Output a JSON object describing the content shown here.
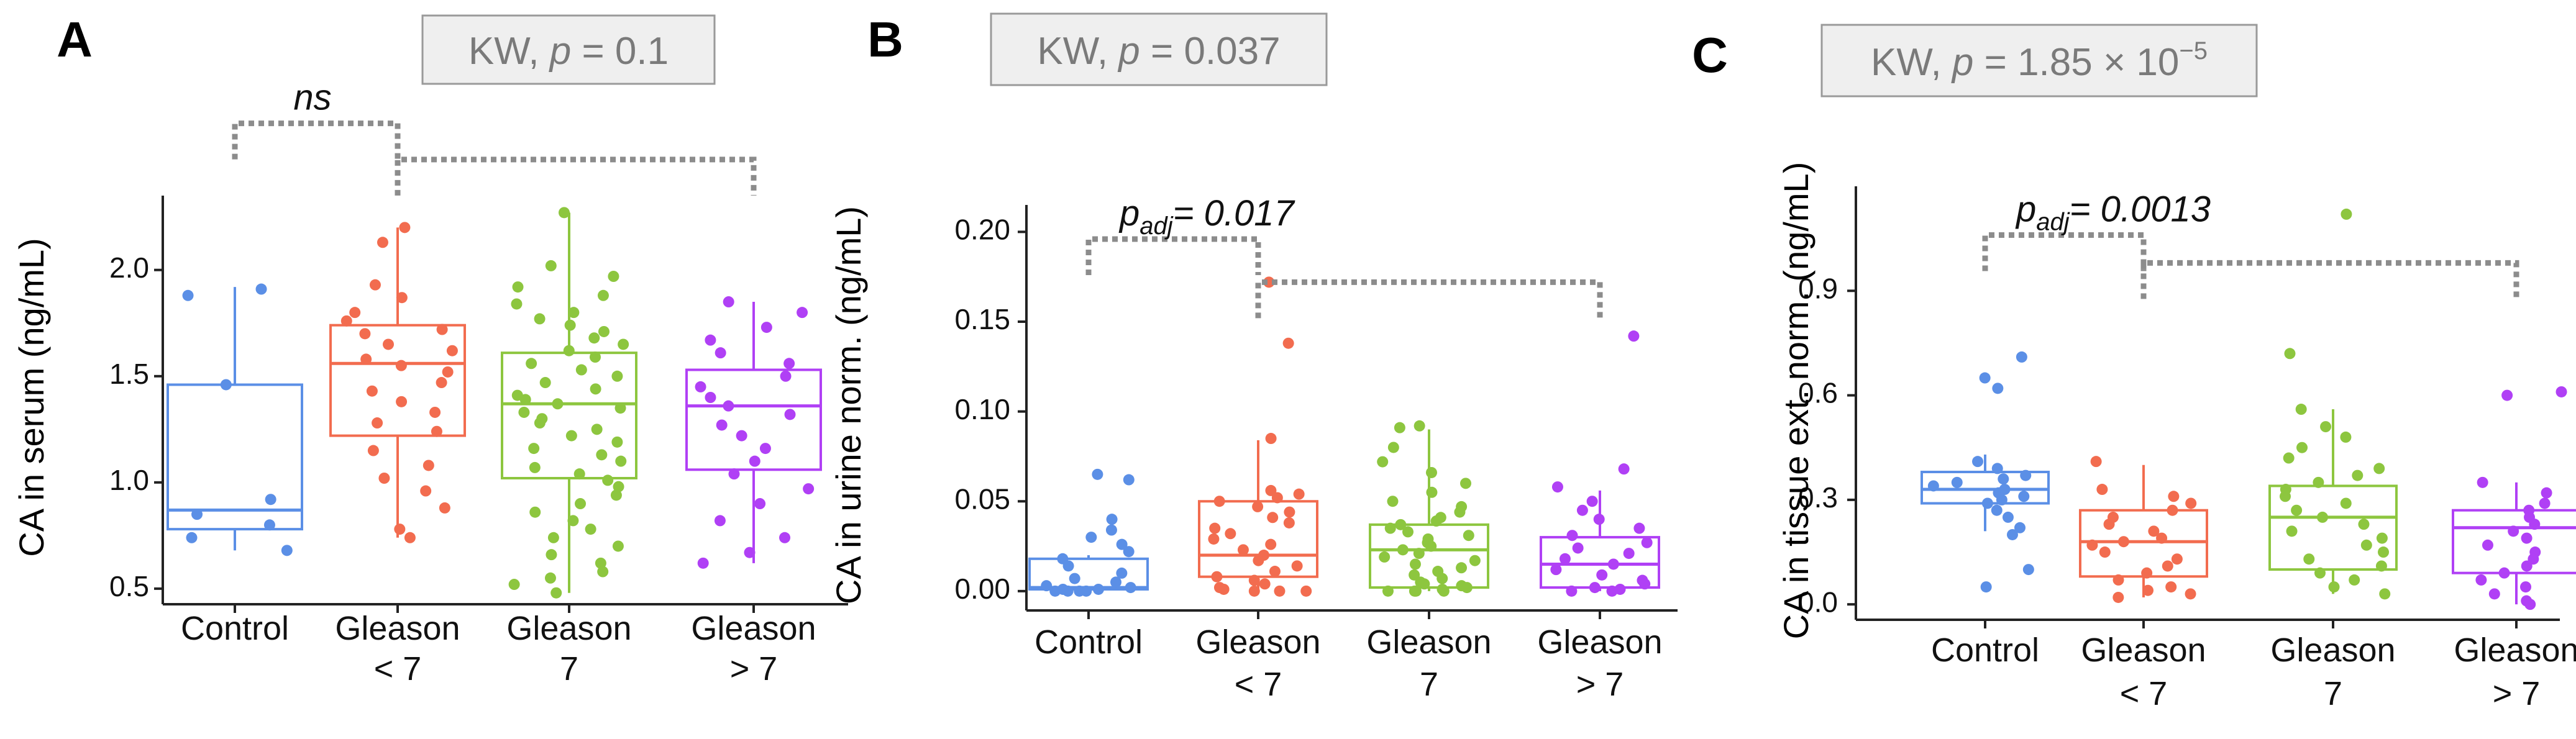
{
  "colors": {
    "Control": "#5b8fe6",
    "Gleason < 7": "#f26c4f",
    "Gleason 7": "#8dc63f",
    "Gleason > 7": "#b040f5",
    "bracket": "#8c8c8c",
    "kwbox_fill": "#efefef",
    "kwbox_stroke": "#9a9a9a"
  },
  "categories_lines": [
    [
      "Control"
    ],
    [
      "Gleason",
      "< 7"
    ],
    [
      "Gleason",
      "7"
    ],
    [
      "Gleason",
      "> 7"
    ]
  ],
  "chart_data": [
    {
      "panel": "A",
      "type": "box",
      "ylabel": "CA in serum (ng/mL)",
      "yticks": [
        "0.5",
        "1.0",
        "1.5",
        "2.0"
      ],
      "ylim": [
        0.45,
        2.35
      ],
      "kw_label": "KW,",
      "kw_p": "p",
      "kw_value": "= 0.1",
      "kw_value_sup": "",
      "brackets": [
        {
          "from": 0,
          "to": 1,
          "level": 2.69,
          "label": "ns",
          "label_sub": "",
          "label_tail": ""
        },
        {
          "from": 1,
          "to": 3,
          "level": 2.52,
          "label": "",
          "label_sub": "",
          "label_tail": ""
        }
      ],
      "series": [
        {
          "name": "Control",
          "q1": 0.78,
          "median": 0.87,
          "q3": 1.46,
          "whisker_low": 0.68,
          "whisker_high": 1.92,
          "points": [
            1.91,
            1.88,
            1.46,
            0.92,
            0.85,
            0.8,
            0.74,
            0.68
          ]
        },
        {
          "name": "Gleason < 7",
          "q1": 1.22,
          "median": 1.56,
          "q3": 1.74,
          "whisker_low": 0.74,
          "whisker_high": 2.2,
          "points": [
            2.2,
            2.13,
            1.93,
            1.87,
            1.8,
            1.76,
            1.72,
            1.7,
            1.65,
            1.62,
            1.58,
            1.55,
            1.52,
            1.47,
            1.43,
            1.38,
            1.33,
            1.28,
            1.24,
            1.15,
            1.08,
            1.02,
            0.96,
            0.88,
            0.78,
            0.74
          ]
        },
        {
          "name": "Gleason 7",
          "q1": 1.02,
          "median": 1.37,
          "q3": 1.61,
          "whisker_low": 0.48,
          "whisker_high": 2.27,
          "points": [
            2.27,
            2.02,
            1.97,
            1.92,
            1.88,
            1.84,
            1.8,
            1.77,
            1.74,
            1.71,
            1.68,
            1.65,
            1.62,
            1.59,
            1.56,
            1.53,
            1.5,
            1.47,
            1.44,
            1.41,
            1.39,
            1.37,
            1.35,
            1.33,
            1.3,
            1.28,
            1.25,
            1.22,
            1.19,
            1.16,
            1.13,
            1.1,
            1.07,
            1.04,
            1.01,
            0.98,
            0.94,
            0.9,
            0.86,
            0.82,
            0.78,
            0.74,
            0.7,
            0.66,
            0.62,
            0.58,
            0.55,
            0.52,
            0.48
          ]
        },
        {
          "name": "Gleason > 7",
          "q1": 1.06,
          "median": 1.36,
          "q3": 1.53,
          "whisker_low": 0.62,
          "whisker_high": 1.85,
          "points": [
            1.85,
            1.8,
            1.73,
            1.67,
            1.61,
            1.56,
            1.5,
            1.45,
            1.4,
            1.36,
            1.32,
            1.27,
            1.22,
            1.16,
            1.1,
            1.04,
            0.97,
            0.9,
            0.82,
            0.74,
            0.67,
            0.62
          ]
        }
      ]
    },
    {
      "panel": "B",
      "type": "box",
      "ylabel": "CA in urine norm. (ng/mL)",
      "yticks": [
        "0.00",
        "0.05",
        "0.10",
        "0.15",
        "0.20"
      ],
      "ylim": [
        -0.008,
        0.215
      ],
      "kw_label": "KW,",
      "kw_p": "p",
      "kw_value": "= 0.037",
      "kw_value_sup": "",
      "brackets": [
        {
          "from": 0,
          "to": 1,
          "level": 0.196,
          "label": "p",
          "label_sub": "adj",
          "label_tail": "= 0.017"
        },
        {
          "from": 1,
          "to": 3,
          "level": 0.172,
          "label": "",
          "label_sub": "",
          "label_tail": ""
        }
      ],
      "series": [
        {
          "name": "Control",
          "q1": 0.001,
          "median": 0.002,
          "q3": 0.018,
          "whisker_low": 0.0,
          "whisker_high": 0.02,
          "points": [
            0.065,
            0.062,
            0.04,
            0.034,
            0.03,
            0.026,
            0.022,
            0.018,
            0.014,
            0.01,
            0.007,
            0.005,
            0.003,
            0.002,
            0.001,
            0.001,
            0.0,
            0.0,
            0.0,
            0.0
          ]
        },
        {
          "name": "Gleason < 7",
          "q1": 0.008,
          "median": 0.02,
          "q3": 0.05,
          "whisker_low": 0.0,
          "whisker_high": 0.084,
          "points": [
            0.172,
            0.138,
            0.085,
            0.056,
            0.054,
            0.052,
            0.05,
            0.047,
            0.044,
            0.041,
            0.038,
            0.035,
            0.032,
            0.029,
            0.026,
            0.023,
            0.02,
            0.017,
            0.014,
            0.011,
            0.008,
            0.006,
            0.004,
            0.002,
            0.001,
            0.0,
            0.0,
            0.0
          ]
        },
        {
          "name": "Gleason 7",
          "q1": 0.002,
          "median": 0.023,
          "q3": 0.037,
          "whisker_low": 0.0,
          "whisker_high": 0.09,
          "points": [
            0.092,
            0.091,
            0.08,
            0.072,
            0.066,
            0.06,
            0.055,
            0.05,
            0.047,
            0.044,
            0.041,
            0.039,
            0.037,
            0.035,
            0.033,
            0.031,
            0.029,
            0.027,
            0.025,
            0.023,
            0.021,
            0.019,
            0.017,
            0.015,
            0.013,
            0.011,
            0.009,
            0.007,
            0.005,
            0.004,
            0.003,
            0.002,
            0.001,
            0.0,
            0.0,
            0.0,
            0.0
          ]
        },
        {
          "name": "Gleason > 7",
          "q1": 0.002,
          "median": 0.015,
          "q3": 0.03,
          "whisker_low": 0.0,
          "whisker_high": 0.056,
          "points": [
            0.142,
            0.068,
            0.058,
            0.05,
            0.045,
            0.04,
            0.035,
            0.031,
            0.027,
            0.024,
            0.021,
            0.018,
            0.015,
            0.012,
            0.009,
            0.006,
            0.004,
            0.002,
            0.001,
            0.0,
            0.0
          ]
        }
      ]
    },
    {
      "panel": "C",
      "type": "box",
      "ylabel": "CA in tissue ext. norm. (ng/mL)",
      "yticks": [
        "0.0",
        "0.3",
        "0.6",
        "0.9"
      ],
      "ylim": [
        -0.03,
        1.2
      ],
      "kw_label": "KW,",
      "kw_p": "p",
      "kw_value": "= 1.85 × 10",
      "kw_value_sup": "−5",
      "brackets": [
        {
          "from": 0,
          "to": 1,
          "level": 1.06,
          "label": "p",
          "label_sub": "adj",
          "label_tail": "= 0.0013"
        },
        {
          "from": 1,
          "to": 3,
          "level": 0.98,
          "label": "",
          "label_sub": "",
          "label_tail": ""
        }
      ],
      "series": [
        {
          "name": "Control",
          "q1": 0.29,
          "median": 0.33,
          "q3": 0.38,
          "whisker_low": 0.21,
          "whisker_high": 0.43,
          "points": [
            0.71,
            0.65,
            0.62,
            0.41,
            0.39,
            0.37,
            0.36,
            0.35,
            0.34,
            0.33,
            0.32,
            0.31,
            0.3,
            0.29,
            0.27,
            0.25,
            0.22,
            0.2,
            0.1,
            0.05
          ]
        },
        {
          "name": "Gleason < 7",
          "q1": 0.08,
          "median": 0.18,
          "q3": 0.27,
          "whisker_low": 0.02,
          "whisker_high": 0.4,
          "points": [
            0.41,
            0.33,
            0.31,
            0.29,
            0.27,
            0.25,
            0.23,
            0.21,
            0.19,
            0.18,
            0.17,
            0.15,
            0.13,
            0.11,
            0.09,
            0.07,
            0.05,
            0.04,
            0.03,
            0.02
          ]
        },
        {
          "name": "Gleason 7",
          "q1": 0.1,
          "median": 0.25,
          "q3": 0.34,
          "whisker_low": 0.03,
          "whisker_high": 0.56,
          "points": [
            1.12,
            0.72,
            0.56,
            0.51,
            0.48,
            0.45,
            0.42,
            0.39,
            0.37,
            0.35,
            0.33,
            0.31,
            0.29,
            0.27,
            0.25,
            0.23,
            0.21,
            0.19,
            0.17,
            0.15,
            0.13,
            0.11,
            0.09,
            0.07,
            0.05,
            0.03
          ]
        },
        {
          "name": "Gleason > 7",
          "q1": 0.09,
          "median": 0.22,
          "q3": 0.27,
          "whisker_low": 0.0,
          "whisker_high": 0.35,
          "points": [
            0.61,
            0.6,
            0.35,
            0.32,
            0.29,
            0.27,
            0.25,
            0.23,
            0.21,
            0.19,
            0.17,
            0.15,
            0.13,
            0.11,
            0.09,
            0.07,
            0.05,
            0.03,
            0.01,
            0.0
          ]
        }
      ]
    }
  ]
}
